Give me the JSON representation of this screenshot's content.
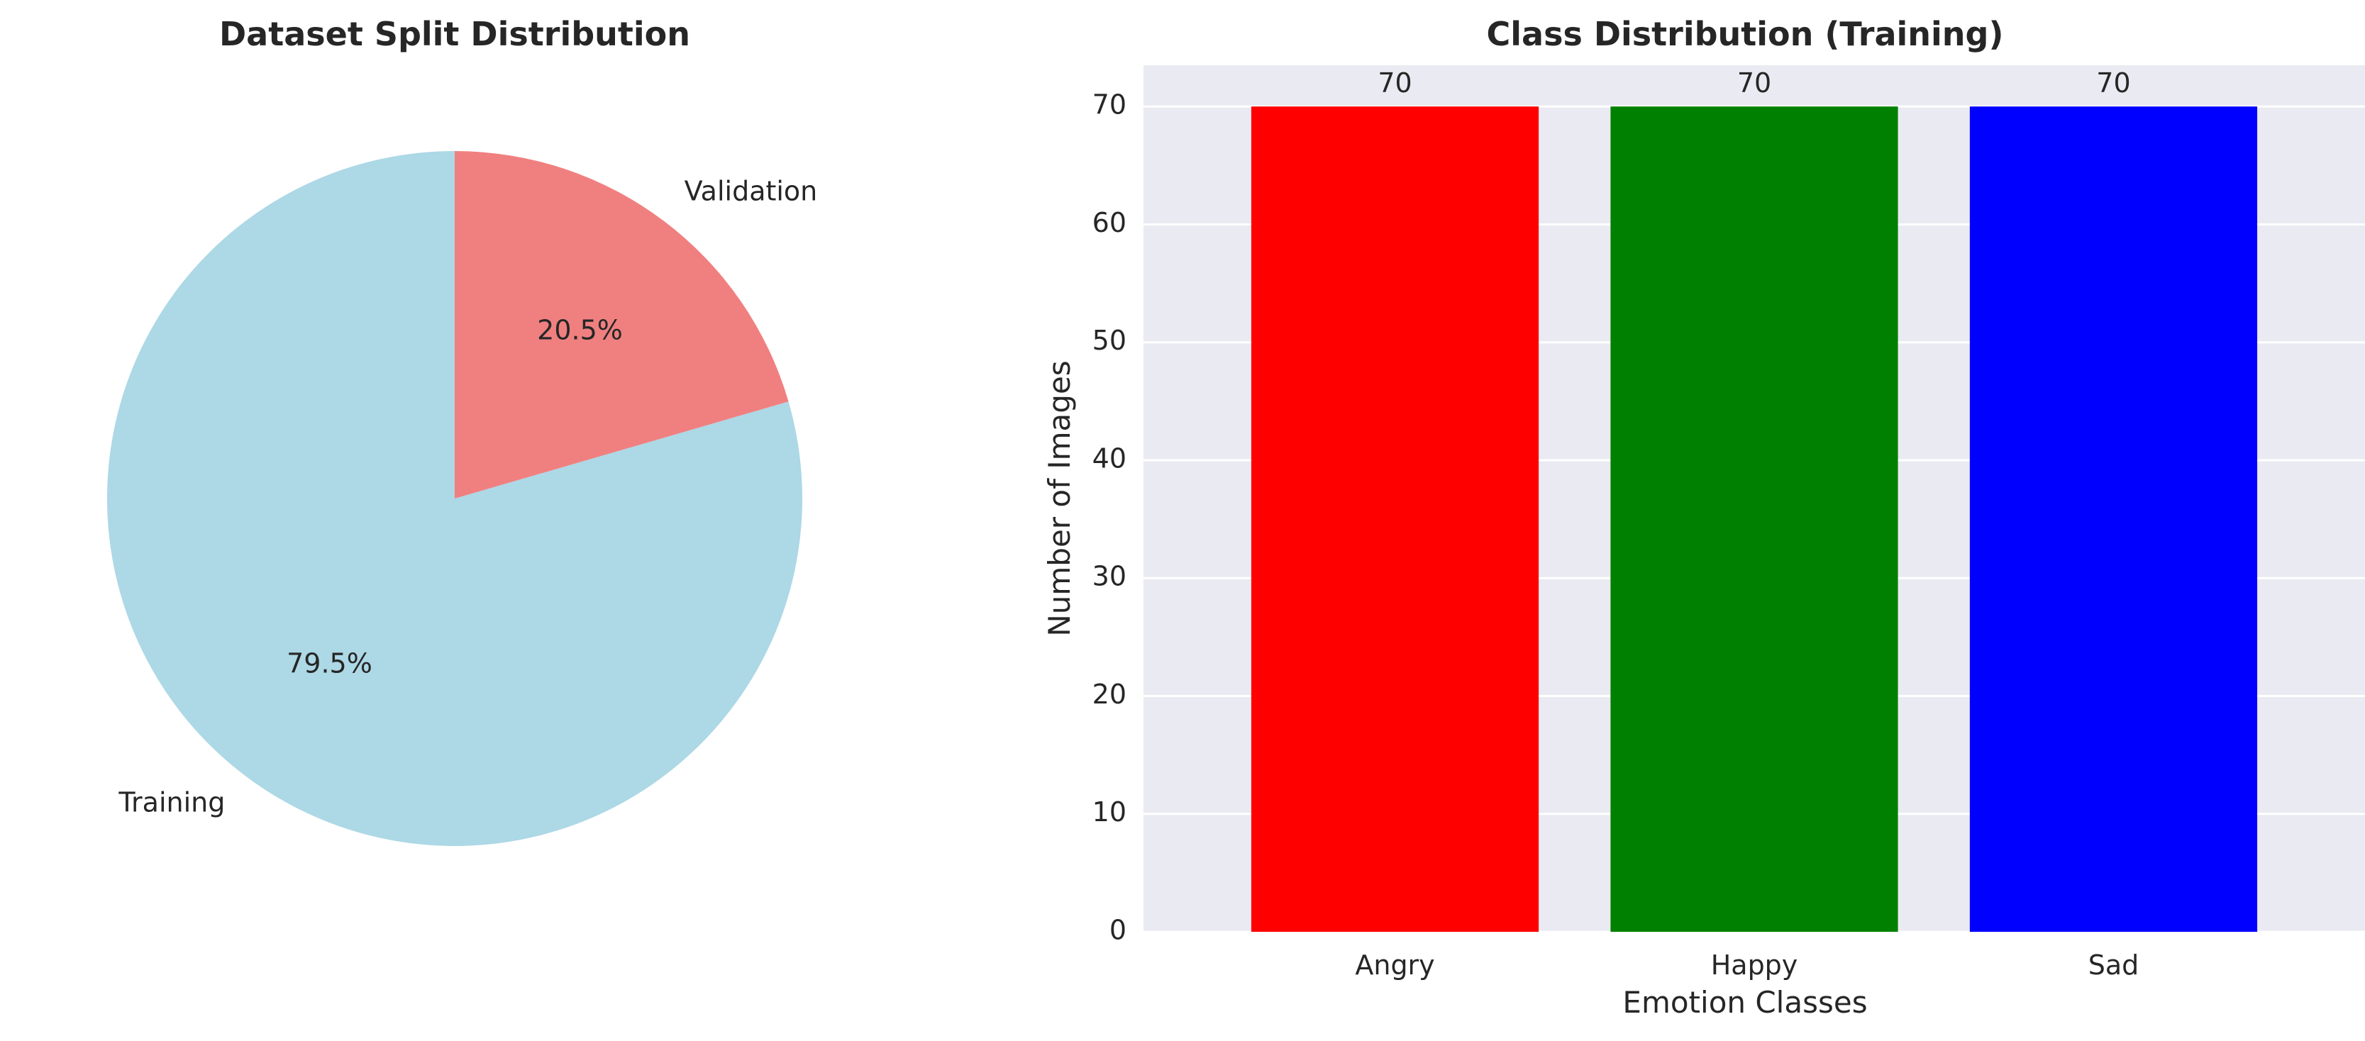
{
  "chart_data": [
    {
      "type": "pie",
      "title": "Dataset Split Distribution",
      "categories": [
        "Training",
        "Validation"
      ],
      "values": [
        79.5,
        20.5
      ],
      "value_labels": [
        "79.5%",
        "20.5%"
      ],
      "colors": [
        "#add8e6",
        "#f08080"
      ]
    },
    {
      "type": "bar",
      "title": "Class Distribution (Training)",
      "xlabel": "Emotion Classes",
      "ylabel": "Number of Images",
      "categories": [
        "Angry",
        "Happy",
        "Sad"
      ],
      "values": [
        70,
        70,
        70
      ],
      "data_labels": [
        "70",
        "70",
        "70"
      ],
      "colors": [
        "#ff0000",
        "#008000",
        "#0000ff"
      ],
      "ylim": [
        0,
        73.5
      ],
      "yticks": [
        "0",
        "10",
        "20",
        "30",
        "40",
        "50",
        "60",
        "70"
      ],
      "grid": true,
      "background": "#eaeaf2"
    }
  ]
}
